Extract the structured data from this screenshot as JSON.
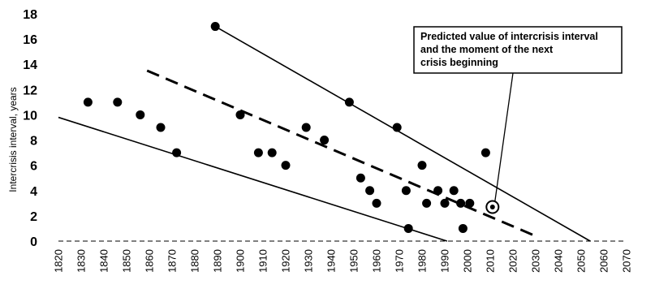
{
  "chart_data": {
    "type": "scatter",
    "title": "",
    "xlabel": "",
    "ylabel": "Intercrisis interval, years",
    "xlim": [
      1820,
      2070
    ],
    "ylim": [
      0,
      18
    ],
    "x_ticks": [
      1820,
      1830,
      1840,
      1850,
      1860,
      1870,
      1880,
      1890,
      1900,
      1910,
      1920,
      1930,
      1940,
      1950,
      1960,
      1970,
      1980,
      1990,
      2000,
      2010,
      2020,
      2030,
      2040,
      2050,
      2060,
      2070
    ],
    "y_ticks": [
      0,
      2,
      4,
      6,
      8,
      10,
      12,
      14,
      16,
      18
    ],
    "grid": false,
    "points": [
      {
        "x": 1833,
        "y": 11
      },
      {
        "x": 1846,
        "y": 11
      },
      {
        "x": 1856,
        "y": 10
      },
      {
        "x": 1865,
        "y": 9
      },
      {
        "x": 1872,
        "y": 7
      },
      {
        "x": 1889,
        "y": 17
      },
      {
        "x": 1900,
        "y": 10
      },
      {
        "x": 1908,
        "y": 7
      },
      {
        "x": 1914,
        "y": 7
      },
      {
        "x": 1920,
        "y": 6
      },
      {
        "x": 1929,
        "y": 9
      },
      {
        "x": 1937,
        "y": 8
      },
      {
        "x": 1948,
        "y": 11
      },
      {
        "x": 1953,
        "y": 5
      },
      {
        "x": 1957,
        "y": 4
      },
      {
        "x": 1960,
        "y": 3
      },
      {
        "x": 1969,
        "y": 9
      },
      {
        "x": 1973,
        "y": 4
      },
      {
        "x": 1974,
        "y": 1
      },
      {
        "x": 1980,
        "y": 6
      },
      {
        "x": 1982,
        "y": 3
      },
      {
        "x": 1987,
        "y": 4
      },
      {
        "x": 1990,
        "y": 3
      },
      {
        "x": 1994,
        "y": 4
      },
      {
        "x": 1997,
        "y": 3
      },
      {
        "x": 1998,
        "y": 1
      },
      {
        "x": 2001,
        "y": 3
      },
      {
        "x": 2008,
        "y": 7
      }
    ],
    "predicted_point": {
      "x": 2011,
      "y": 2.7
    },
    "lines": [
      {
        "style": "solid",
        "x": [
          1820,
          1991
        ],
        "y": [
          9.8,
          0
        ]
      },
      {
        "style": "solid",
        "x": [
          1889,
          2054
        ],
        "y": [
          17,
          0
        ]
      },
      {
        "style": "dashed",
        "x": [
          1859,
          2030
        ],
        "y": [
          13.5,
          0.4
        ]
      }
    ],
    "annotation": {
      "lines": [
        "Predicted value of intercrisis interval",
        "and the moment of the next",
        "crisis beginning"
      ]
    }
  }
}
